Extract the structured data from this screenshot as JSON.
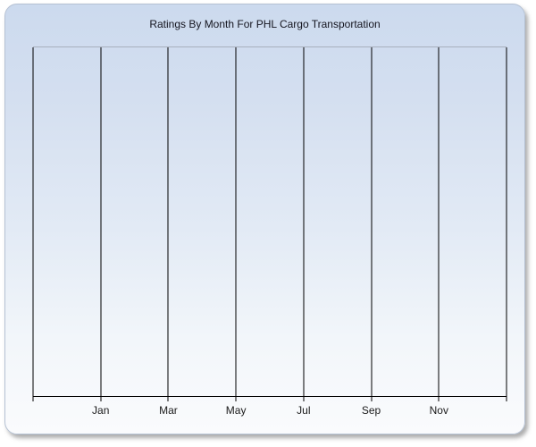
{
  "panel": {
    "title": "Ratings By Month For PHL Cargo Transportation",
    "colors": {
      "panel_background_top": "#ccdaee",
      "panel_background_bottom": "#fafbfd",
      "panel_border": "#b5c1d3",
      "plot_top_border": "#a8b0bd",
      "gridline": "#000000",
      "axis_line": "#000000",
      "title_text": "#14141e",
      "tick_label_text": "#1a1a1a"
    }
  },
  "chart_data": {
    "type": "line",
    "title": "Ratings By Month For PHL Cargo Transportation",
    "xlabel": "",
    "ylabel": "",
    "x_tick_labels": [
      "Jan",
      "Mar",
      "May",
      "Jul",
      "Sep",
      "Nov"
    ],
    "x_gridline_count": 8,
    "y_tick_labels": [],
    "series": [],
    "grid": "vertical gridlines only",
    "legend": "none"
  }
}
